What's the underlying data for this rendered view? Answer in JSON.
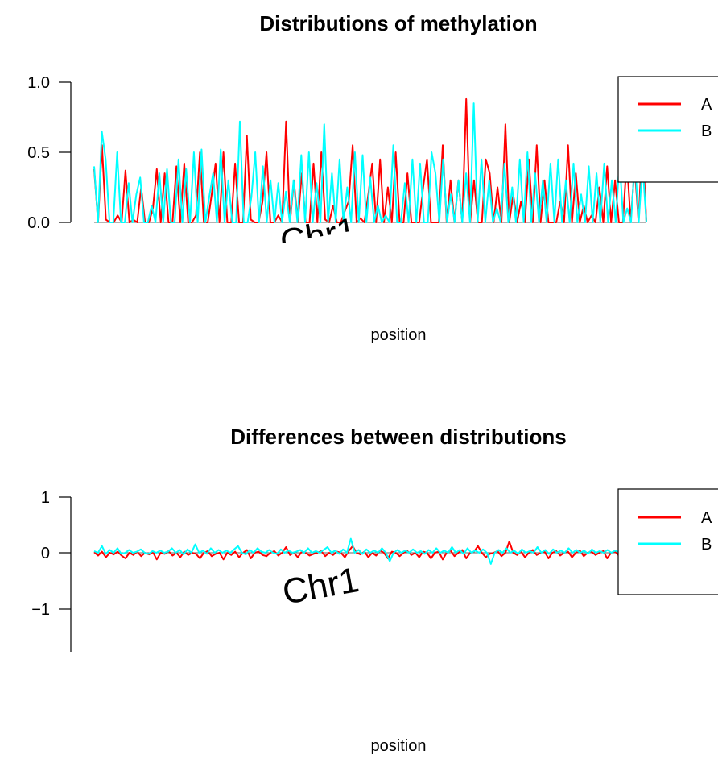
{
  "chart_data": [
    {
      "type": "line",
      "title": "Distributions of methylation",
      "xlabel": "position",
      "ylabel": "",
      "ylim": [
        0,
        1.0
      ],
      "yticks": [
        "0.0",
        "0.5",
        "1.0"
      ],
      "category_label": "Chr1",
      "grid": false,
      "legend_position": "top-right",
      "series": [
        {
          "name": "A",
          "color": "#ff0000",
          "values": [
            0.38,
            0.0,
            0.55,
            0.02,
            0.0,
            0.0,
            0.05,
            0.0,
            0.37,
            0.0,
            0.02,
            0.0,
            0.25,
            0.0,
            0.0,
            0.1,
            0.38,
            0.0,
            0.35,
            0.0,
            0.0,
            0.4,
            0.0,
            0.42,
            0.0,
            0.0,
            0.05,
            0.5,
            0.0,
            0.0,
            0.2,
            0.42,
            0.0,
            0.5,
            0.0,
            0.0,
            0.42,
            0.0,
            0.0,
            0.62,
            0.02,
            0.0,
            0.0,
            0.15,
            0.5,
            0.0,
            0.0,
            0.05,
            0.0,
            0.72,
            0.0,
            0.3,
            0.0,
            0.35,
            0.0,
            0.0,
            0.42,
            0.0,
            0.5,
            0.02,
            0.0,
            0.12,
            0.0,
            0.0,
            0.08,
            0.15,
            0.55,
            0.0,
            0.03,
            0.0,
            0.2,
            0.42,
            0.0,
            0.45,
            0.0,
            0.25,
            0.0,
            0.5,
            0.0,
            0.0,
            0.35,
            0.0,
            0.0,
            0.0,
            0.25,
            0.45,
            0.0,
            0.0,
            0.0,
            0.55,
            0.0,
            0.3,
            0.0,
            0.3,
            0.0,
            0.88,
            0.0,
            0.3,
            0.0,
            0.0,
            0.45,
            0.35,
            0.0,
            0.25,
            0.0,
            0.7,
            0.0,
            0.2,
            0.0,
            0.15,
            0.0,
            0.45,
            0.0,
            0.55,
            0.0,
            0.3,
            0.0,
            0.0,
            0.0,
            0.15,
            0.0,
            0.55,
            0.0,
            0.35,
            0.0,
            0.12,
            0.0,
            0.05,
            0.0,
            0.25,
            0.0,
            0.4,
            0.0,
            0.3,
            0.0,
            0.0,
            0.45,
            0.0,
            0.4,
            0.0,
            0.6,
            0.0
          ],
          "diff": [
            0.01,
            -0.05,
            0.02,
            -0.08,
            0.0,
            -0.03,
            0.02,
            -0.05,
            -0.1,
            0.0,
            -0.04,
            0.02,
            -0.06,
            0.0,
            -0.03,
            0.01,
            -0.12,
            0.0,
            -0.02,
            0.03,
            -0.05,
            0.0,
            -0.08,
            0.02,
            -0.04,
            0.0,
            -0.02,
            -0.1,
            0.0,
            0.03,
            -0.06,
            -0.02,
            0.0,
            -0.12,
            0.0,
            -0.04,
            0.02,
            -0.08,
            0.0,
            0.05,
            -0.1,
            0.0,
            0.02,
            -0.04,
            -0.06,
            0.0,
            0.03,
            -0.05,
            0.0,
            0.1,
            -0.04,
            0.0,
            -0.08,
            0.02,
            0.0,
            -0.05,
            -0.02,
            0.0,
            0.03,
            -0.06,
            0.0,
            -0.04,
            0.02,
            0.0,
            -0.08,
            0.03,
            0.12,
            0.0,
            -0.03,
            0.02,
            -0.08,
            0.0,
            -0.05,
            0.04,
            0.0,
            -0.1,
            0.02,
            0.0,
            -0.06,
            0.0,
            0.03,
            -0.04,
            0.0,
            -0.08,
            0.02,
            0.0,
            -0.1,
            0.0,
            0.02,
            -0.12,
            0.0,
            0.04,
            -0.06,
            0.0,
            0.05,
            -0.1,
            0.0,
            0.02,
            0.12,
            0.0,
            -0.08,
            -0.02,
            0.0,
            0.03,
            -0.06,
            0.0,
            0.2,
            0.0,
            -0.04,
            0.02,
            -0.08,
            0.0,
            0.05,
            -0.04,
            0.0,
            0.02,
            -0.1,
            0.0,
            0.03,
            -0.05,
            0.0,
            0.02,
            -0.08,
            0.0,
            0.04,
            -0.06,
            0.0,
            0.02,
            -0.04,
            0.0,
            0.03,
            -0.1,
            0.0,
            0.02,
            -0.05,
            0.0,
            0.04,
            -0.08,
            0.0,
            0.02,
            -0.03,
            0.0
          ]
        },
        {
          "name": "B",
          "color": "#00ffff",
          "values": [
            0.4,
            0.0,
            0.65,
            0.45,
            0.0,
            0.0,
            0.5,
            0.0,
            0.0,
            0.28,
            0.0,
            0.2,
            0.32,
            0.0,
            0.0,
            0.12,
            0.0,
            0.35,
            0.0,
            0.38,
            0.0,
            0.0,
            0.45,
            0.0,
            0.38,
            0.0,
            0.5,
            0.0,
            0.52,
            0.0,
            0.18,
            0.35,
            0.0,
            0.52,
            0.0,
            0.3,
            0.0,
            0.0,
            0.72,
            0.0,
            0.0,
            0.18,
            0.5,
            0.0,
            0.4,
            0.0,
            0.3,
            0.0,
            0.28,
            0.0,
            0.22,
            0.0,
            0.3,
            0.0,
            0.48,
            0.0,
            0.5,
            0.0,
            0.28,
            0.0,
            0.7,
            0.0,
            0.35,
            0.0,
            0.45,
            0.0,
            0.25,
            0.0,
            0.5,
            0.0,
            0.48,
            0.0,
            0.32,
            0.0,
            0.12,
            0.0,
            0.05,
            0.0,
            0.55,
            0.0,
            0.0,
            0.28,
            0.0,
            0.45,
            0.0,
            0.42,
            0.0,
            0.0,
            0.5,
            0.35,
            0.0,
            0.45,
            0.0,
            0.2,
            0.0,
            0.3,
            0.0,
            0.35,
            0.0,
            0.85,
            0.0,
            0.45,
            0.0,
            0.3,
            0.0,
            0.1,
            0.0,
            0.42,
            0.0,
            0.25,
            0.0,
            0.45,
            0.0,
            0.5,
            0.0,
            0.35,
            0.0,
            0.3,
            0.0,
            0.42,
            0.0,
            0.45,
            0.0,
            0.3,
            0.0,
            0.42,
            0.0,
            0.2,
            0.0,
            0.4,
            0.0,
            0.35,
            0.0,
            0.42,
            0.0,
            0.3,
            0.0,
            0.45,
            0.0,
            0.1,
            0.0,
            0.45,
            0.0,
            0.42,
            0.0
          ],
          "diff": [
            0.03,
            0.0,
            0.12,
            -0.02,
            0.05,
            0.0,
            0.08,
            -0.02,
            0.0,
            0.05,
            0.0,
            0.02,
            0.06,
            0.0,
            -0.02,
            0.03,
            0.0,
            0.04,
            0.0,
            0.02,
            0.08,
            0.0,
            0.05,
            -0.03,
            0.06,
            0.0,
            0.15,
            0.0,
            0.04,
            -0.02,
            0.08,
            0.0,
            0.05,
            0.0,
            0.04,
            0.0,
            0.06,
            0.12,
            0.0,
            -0.03,
            0.05,
            0.0,
            0.08,
            0.02,
            0.0,
            0.05,
            0.0,
            -0.02,
            0.06,
            0.0,
            0.04,
            0.0,
            0.02,
            0.05,
            0.0,
            0.08,
            0.0,
            0.03,
            0.0,
            0.05,
            0.1,
            0.0,
            0.04,
            -0.02,
            0.06,
            0.0,
            0.25,
            0.0,
            0.05,
            -0.02,
            0.06,
            0.0,
            0.04,
            0.0,
            0.08,
            0.0,
            -0.15,
            0.0,
            0.05,
            0.0,
            0.04,
            0.0,
            0.06,
            0.0,
            0.03,
            -0.02,
            0.05,
            0.0,
            0.08,
            0.0,
            0.04,
            0.0,
            0.1,
            0.0,
            0.05,
            -0.02,
            0.08,
            0.0,
            0.04,
            0.0,
            0.06,
            0.0,
            -0.2,
            0.0,
            0.05,
            0.0,
            0.08,
            0.0,
            0.04,
            -0.02,
            0.06,
            0.0,
            0.03,
            0.0,
            0.1,
            0.0,
            0.05,
            -0.02,
            0.06,
            0.0,
            0.04,
            0.0,
            0.08,
            0.0,
            0.05,
            0.0,
            0.04,
            -0.02,
            0.06,
            0.0,
            0.03,
            0.0,
            0.05,
            0.0,
            0.04,
            0.0,
            0.08,
            0.0,
            -0.03,
            0.05,
            0.0,
            0.04,
            0.0
          ]
        }
      ]
    },
    {
      "type": "line",
      "title": "Differences between distributions",
      "xlabel": "position",
      "ylabel": "",
      "ylim": [
        -1.75,
        1
      ],
      "yticks": [
        "−1",
        "0",
        "1"
      ],
      "category_label": "Chr1",
      "grid": false,
      "legend_position": "top-right",
      "series": [
        {
          "name": "A",
          "color": "#ff0000"
        },
        {
          "name": "B",
          "color": "#00ffff"
        }
      ]
    }
  ]
}
